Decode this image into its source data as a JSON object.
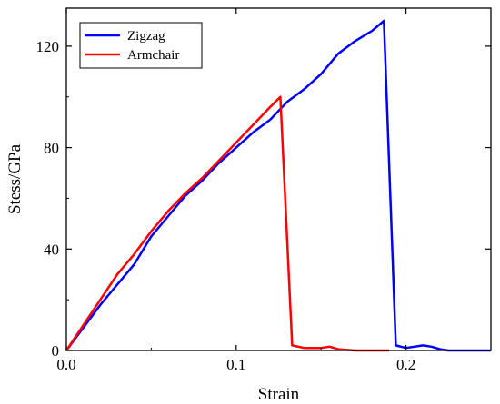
{
  "chart_data": {
    "type": "line",
    "title": "",
    "xlabel": "Strain",
    "ylabel": "Stess/GPa",
    "xlim": [
      0,
      0.25
    ],
    "ylim": [
      0,
      135
    ],
    "xticks": [
      0.0,
      0.1,
      0.2
    ],
    "xtick_labels": [
      "0.0",
      "0.1",
      "0.2"
    ],
    "yticks": [
      0,
      40,
      80,
      120
    ],
    "ytick_labels": [
      "0",
      "40",
      "80",
      "120"
    ],
    "grid": false,
    "legend": "top-left",
    "series": [
      {
        "name": "Zigzag",
        "color": "#0000ff",
        "x": [
          0,
          0.01,
          0.02,
          0.03,
          0.04,
          0.05,
          0.06,
          0.07,
          0.08,
          0.09,
          0.1,
          0.11,
          0.12,
          0.13,
          0.14,
          0.15,
          0.16,
          0.17,
          0.18,
          0.187,
          0.194,
          0.197,
          0.2,
          0.205,
          0.21,
          0.215,
          0.22,
          0.225,
          0.23,
          0.24,
          0.25
        ],
        "y": [
          0,
          9,
          18,
          26,
          34,
          45,
          53,
          61,
          67,
          74,
          80,
          86,
          91,
          98,
          103,
          109,
          117,
          122,
          126,
          130,
          2,
          1.5,
          1,
          1.5,
          2,
          1.5,
          0.5,
          0,
          0,
          0,
          0
        ]
      },
      {
        "name": "Armchair",
        "color": "#ff0000",
        "x": [
          0,
          0.01,
          0.02,
          0.03,
          0.04,
          0.05,
          0.06,
          0.07,
          0.08,
          0.09,
          0.1,
          0.11,
          0.12,
          0.126,
          0.133,
          0.14,
          0.15,
          0.155,
          0.16,
          0.17,
          0.18,
          0.19
        ],
        "y": [
          0,
          10,
          20,
          30,
          38,
          47,
          55,
          62,
          68,
          75,
          82,
          89,
          96,
          100,
          2,
          1,
          1,
          1.5,
          0.5,
          0,
          0,
          0
        ]
      }
    ]
  }
}
